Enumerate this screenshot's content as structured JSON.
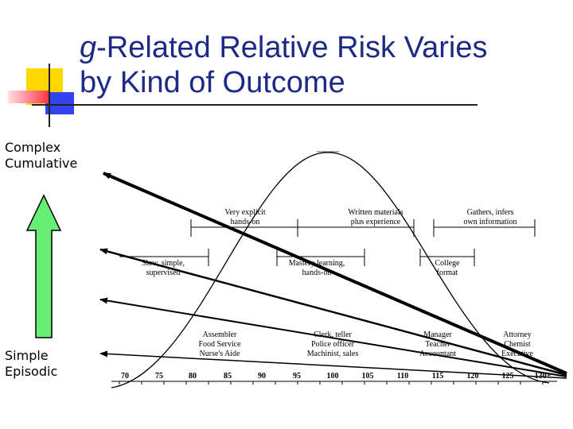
{
  "title": {
    "italic_part": "g",
    "rest_line1": "-Related Relative Risk Varies",
    "line2": "by Kind of Outcome"
  },
  "axis_labels": {
    "top_line1": "Complex",
    "top_line2": "Cumulative",
    "bottom_line1": "Simple",
    "bottom_line2": "Episodic"
  },
  "iq_ticks": [
    "70",
    "75",
    "80",
    "85",
    "90",
    "95",
    "100",
    "105",
    "110",
    "115",
    "120",
    "125",
    "130+"
  ],
  "learning_styles_row1": [
    {
      "line1": "Very explicit",
      "line2": "hands-on"
    },
    {
      "line1": "Written materials",
      "line2": "plus experience"
    },
    {
      "line1": "Gathers, infers",
      "line2": "own information"
    }
  ],
  "learning_styles_row2": [
    {
      "line1": "Slow, simple,",
      "line2": "supervised"
    },
    {
      "line1": "Mastery learning,",
      "line2": "hands-on"
    },
    {
      "line1": "College",
      "line2": "format"
    }
  ],
  "occupations": [
    {
      "line1": "Assembler",
      "line2": "Food Service",
      "line3": "Nurse's Aide"
    },
    {
      "line1": "Clerk, teller",
      "line2": "Police officer",
      "line3": "Machinist, sales"
    },
    {
      "line1": "Manager",
      "line2": "Teacher",
      "line3": "Accountant"
    },
    {
      "line1": "Attorney",
      "line2": "Chemist",
      "line3": "Executive"
    }
  ],
  "colors": {
    "title": "#1c2a86",
    "arrow_green": "#66ee77",
    "deco_yellow": "#ffd800",
    "deco_red": "#ff3344",
    "deco_blue": "#3344ee"
  }
}
